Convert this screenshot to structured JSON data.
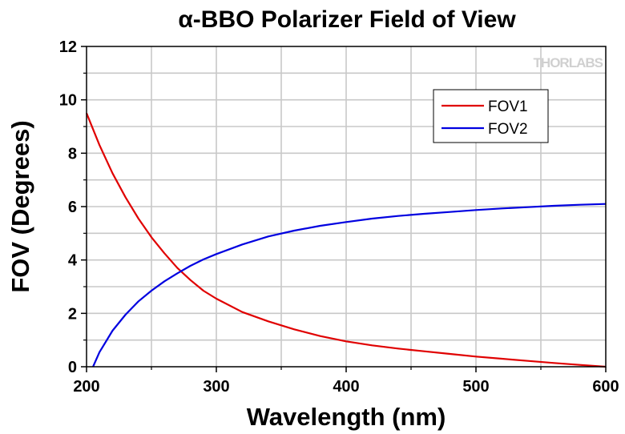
{
  "chart_data": {
    "type": "line",
    "title": "α-BBO Polarizer Field of View",
    "xlabel": "Wavelength (nm)",
    "ylabel": "FOV (Degrees)",
    "xlim": [
      200,
      600
    ],
    "ylim": [
      0,
      12
    ],
    "xticks": [
      200,
      300,
      400,
      500,
      600
    ],
    "yticks": [
      0,
      2,
      4,
      6,
      8,
      10,
      12
    ],
    "grid": true,
    "legend_position": "top-right",
    "watermark": "THORLABS",
    "series": [
      {
        "name": "FOV1",
        "color": "#e00000",
        "x": [
          200,
          210,
          220,
          230,
          240,
          250,
          260,
          270,
          280,
          290,
          300,
          320,
          340,
          360,
          380,
          400,
          420,
          440,
          460,
          480,
          500,
          520,
          540,
          560,
          580,
          600
        ],
        "y": [
          9.5,
          8.3,
          7.25,
          6.35,
          5.55,
          4.85,
          4.25,
          3.7,
          3.25,
          2.85,
          2.55,
          2.05,
          1.7,
          1.4,
          1.15,
          0.95,
          0.8,
          0.68,
          0.58,
          0.48,
          0.38,
          0.3,
          0.22,
          0.14,
          0.07,
          0.0
        ]
      },
      {
        "name": "FOV2",
        "color": "#0000e0",
        "x": [
          205,
          210,
          220,
          230,
          240,
          250,
          260,
          270,
          280,
          290,
          300,
          320,
          340,
          360,
          380,
          400,
          420,
          440,
          460,
          480,
          500,
          520,
          540,
          560,
          580,
          600
        ],
        "y": [
          0.0,
          0.55,
          1.35,
          1.95,
          2.45,
          2.85,
          3.2,
          3.5,
          3.78,
          4.02,
          4.22,
          4.58,
          4.88,
          5.1,
          5.28,
          5.42,
          5.55,
          5.65,
          5.73,
          5.8,
          5.87,
          5.93,
          5.98,
          6.03,
          6.07,
          6.1
        ]
      }
    ]
  }
}
